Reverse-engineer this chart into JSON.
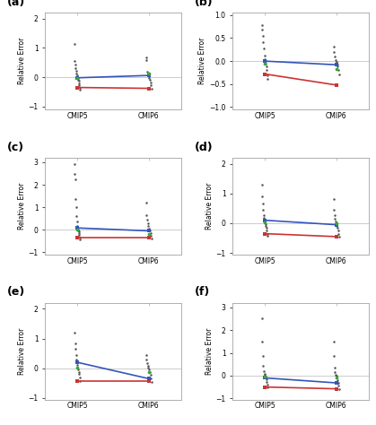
{
  "panels": [
    {
      "label": "(a)",
      "ylim": [
        -1.1,
        2.2
      ],
      "yticks": [
        -1,
        0,
        1,
        2
      ],
      "ylabel": "Relative Error",
      "cmip5_dots": [
        1.15,
        0.55,
        0.42,
        0.32,
        0.22,
        0.12,
        0.05,
        0.0,
        -0.04,
        -0.08,
        -0.13,
        -0.2,
        -0.28,
        -0.35,
        -0.42
      ],
      "cmip6_dots": [
        0.68,
        0.58,
        0.18,
        0.1,
        0.06,
        0.02,
        -0.02,
        -0.08,
        -0.18,
        -0.28,
        -0.38
      ],
      "cmip5_red": -0.35,
      "cmip5_blue": -0.02,
      "cmip6_red": -0.38,
      "cmip6_blue": 0.06,
      "cmip5_green": -0.02,
      "cmip6_green": 0.12
    },
    {
      "label": "(b)",
      "ylim": [
        -1.05,
        1.05
      ],
      "yticks": [
        -1,
        -0.5,
        0,
        0.5,
        1
      ],
      "ylabel": "Relative Error",
      "cmip5_dots": [
        0.78,
        0.68,
        0.55,
        0.42,
        0.28,
        0.12,
        0.05,
        0.0,
        -0.05,
        -0.12,
        -0.2,
        -0.3,
        -0.38
      ],
      "cmip6_dots": [
        0.32,
        0.2,
        0.1,
        0.03,
        -0.02,
        -0.07,
        -0.12,
        -0.2,
        -0.28
      ],
      "cmip5_red": -0.28,
      "cmip5_blue": 0.0,
      "cmip6_red": -0.52,
      "cmip6_blue": -0.08,
      "cmip5_green": -0.05,
      "cmip6_green": -0.18
    },
    {
      "label": "(c)",
      "ylim": [
        -1.1,
        3.2
      ],
      "yticks": [
        -1,
        0,
        1,
        2,
        3
      ],
      "ylabel": "Relative Error",
      "cmip5_dots": [
        2.9,
        2.5,
        2.25,
        1.35,
        1.0,
        0.6,
        0.35,
        0.15,
        0.08,
        0.02,
        -0.03,
        -0.08,
        -0.15,
        -0.25,
        -0.35,
        -0.42
      ],
      "cmip6_dots": [
        1.2,
        0.65,
        0.45,
        0.3,
        0.15,
        0.05,
        0.0,
        -0.05,
        -0.15,
        -0.28,
        -0.38
      ],
      "cmip5_red": -0.35,
      "cmip5_blue": 0.08,
      "cmip6_red": -0.35,
      "cmip6_blue": -0.05,
      "cmip5_green": 0.02,
      "cmip6_green": -0.18
    },
    {
      "label": "(d)",
      "ylim": [
        -1.05,
        2.2
      ],
      "yticks": [
        -1,
        0,
        1,
        2
      ],
      "ylabel": "Relative Error",
      "cmip5_dots": [
        1.3,
        0.9,
        0.65,
        0.45,
        0.28,
        0.18,
        0.1,
        0.04,
        -0.02,
        -0.08,
        -0.15,
        -0.25,
        -0.35,
        -0.42
      ],
      "cmip6_dots": [
        0.8,
        0.45,
        0.28,
        0.15,
        0.05,
        -0.02,
        -0.08,
        -0.15,
        -0.25,
        -0.35,
        -0.45
      ],
      "cmip5_red": -0.35,
      "cmip5_blue": 0.1,
      "cmip6_red": -0.45,
      "cmip6_blue": -0.05,
      "cmip5_green": 0.04,
      "cmip6_green": 0.0
    },
    {
      "label": "(e)",
      "ylim": [
        -1.05,
        2.2
      ],
      "yticks": [
        -1,
        0,
        1,
        2
      ],
      "ylabel": "Relative Error",
      "cmip5_dots": [
        1.2,
        0.85,
        0.65,
        0.45,
        0.28,
        0.1,
        0.02,
        -0.05,
        -0.12,
        -0.2,
        -0.3,
        -0.42
      ],
      "cmip6_dots": [
        0.45,
        0.3,
        0.18,
        0.08,
        0.02,
        -0.05,
        -0.12,
        -0.22,
        -0.35,
        -0.45
      ],
      "cmip5_red": -0.42,
      "cmip5_blue": 0.2,
      "cmip6_red": -0.42,
      "cmip6_blue": -0.35,
      "cmip5_green": 0.02,
      "cmip6_green": -0.12
    },
    {
      "label": "(f)",
      "ylim": [
        -1.05,
        3.2
      ],
      "yticks": [
        -1,
        0,
        1,
        2,
        3
      ],
      "ylabel": "Relative Error",
      "cmip5_dots": [
        2.5,
        1.5,
        0.85,
        0.45,
        0.2,
        0.08,
        0.02,
        -0.03,
        -0.1,
        -0.18,
        -0.28,
        -0.38,
        -0.5
      ],
      "cmip6_dots": [
        1.5,
        0.85,
        0.35,
        0.15,
        0.05,
        -0.02,
        -0.1,
        -0.2,
        -0.32,
        -0.45,
        -0.58
      ],
      "cmip5_red": -0.5,
      "cmip5_blue": -0.1,
      "cmip6_red": -0.58,
      "cmip6_blue": -0.32,
      "cmip5_green": -0.03,
      "cmip6_green": -0.1
    }
  ],
  "x_labels": [
    "CMIP5",
    "CMIP6"
  ],
  "x_positions": [
    0,
    1
  ],
  "dot_color": "#555555",
  "red_color": "#cc3333",
  "blue_color": "#3355bb",
  "green_color": "#33aa33",
  "bg_color": "#ffffff",
  "hline_color": "#cccccc",
  "spine_color": "#aaaaaa",
  "dot_markersize": 1.8,
  "line_width": 1.2,
  "endpoint_markersize": 3.0
}
